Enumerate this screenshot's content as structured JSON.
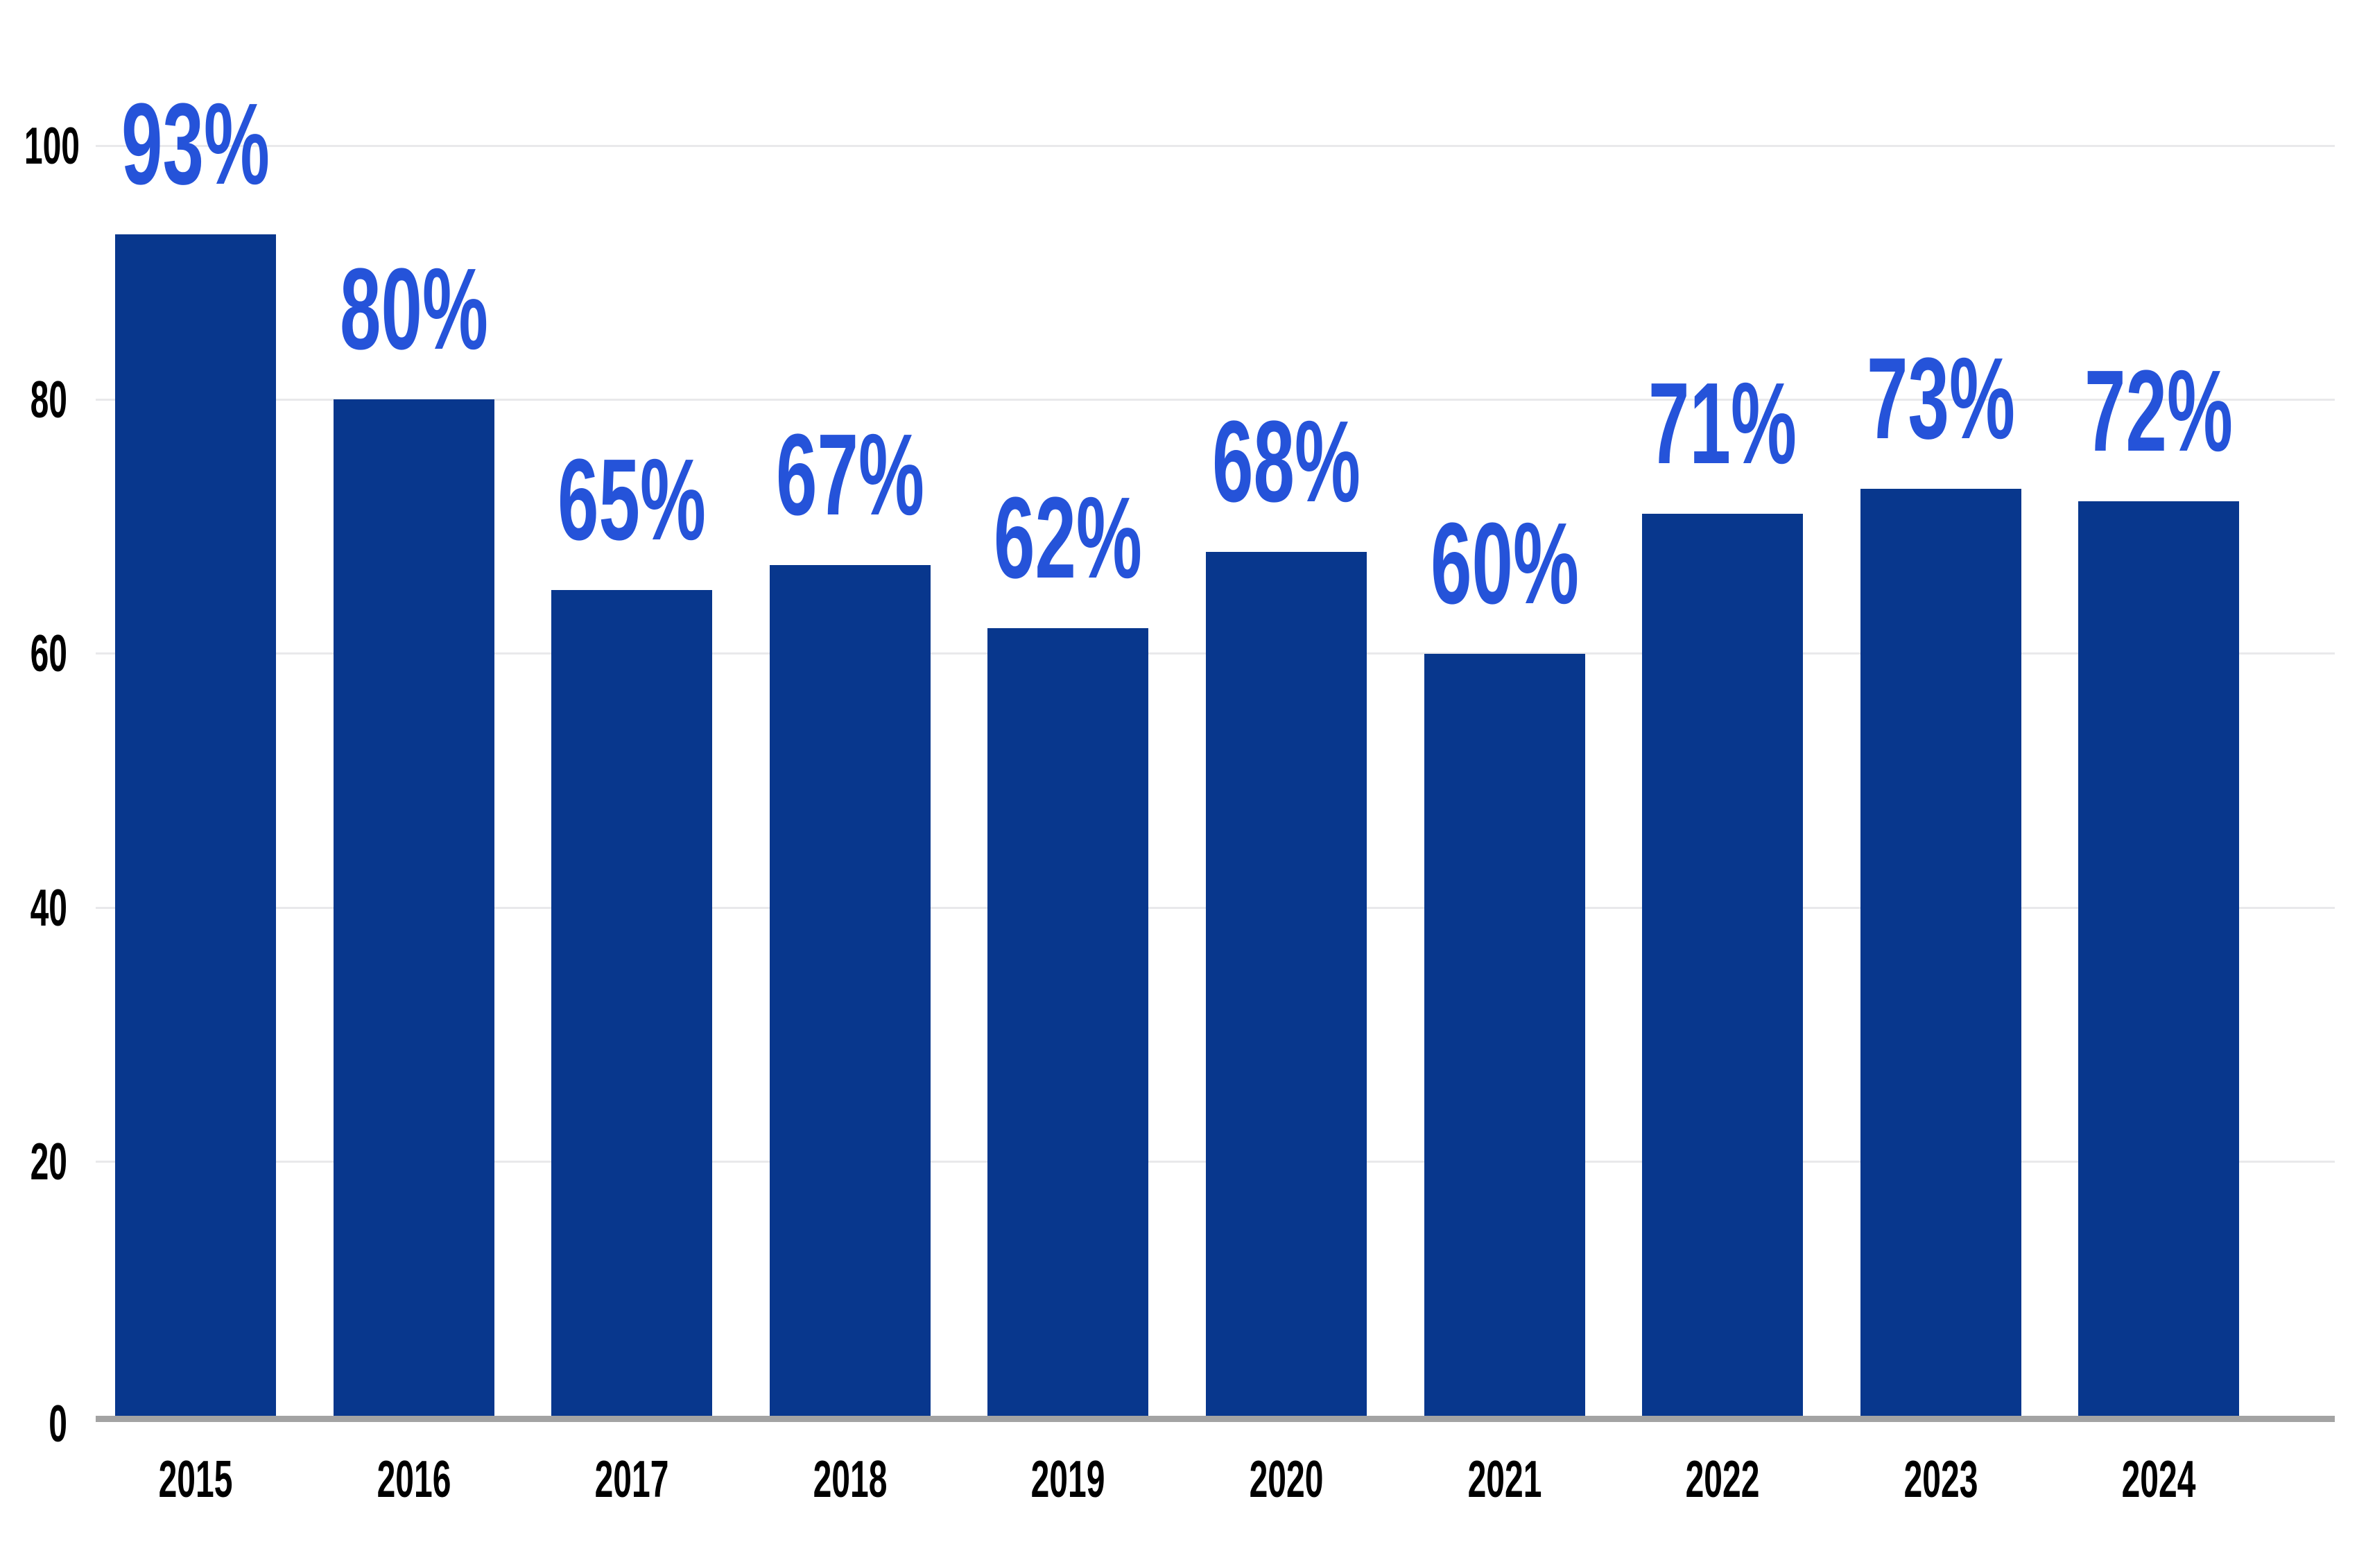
{
  "chart_data": {
    "type": "bar",
    "title": "",
    "xlabel": "",
    "ylabel": "",
    "categories": [
      "2015",
      "2016",
      "2017",
      "2018",
      "2019",
      "2020",
      "2021",
      "2022",
      "2023",
      "2024"
    ],
    "values": [
      93,
      80,
      65,
      67,
      62,
      68,
      60,
      71,
      73,
      72
    ],
    "value_labels": [
      "93%",
      "80%",
      "65%",
      "67%",
      "62%",
      "68%",
      "60%",
      "71%",
      "73%",
      "72%"
    ],
    "y_axis": {
      "ticks": [
        0,
        20,
        40,
        60,
        80,
        100
      ],
      "range": [
        0,
        100
      ],
      "gridlines": true
    },
    "legend_position": "none",
    "colors": {
      "bar": "#08378d",
      "value_label": "#2553d9",
      "tick_text": "#000000",
      "gridline": "#e9e9eb",
      "axis_line": "#a3a3a3",
      "background": "#ffffff"
    }
  }
}
